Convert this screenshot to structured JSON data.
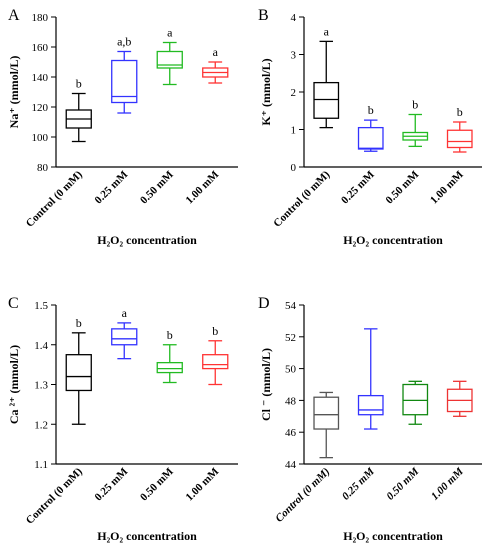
{
  "chart_data": [
    {
      "type": "box",
      "panel_label": "A",
      "ylabel": "Na⁺ (mmol/L)",
      "xlabel": "H₂O₂ concentration",
      "ylim": [
        80,
        180
      ],
      "yticks": [
        80,
        100,
        120,
        140,
        160,
        180
      ],
      "categories": [
        "Control (0 mM)",
        "0.25 mM",
        "0.50 mM",
        "1.00 mM"
      ],
      "colors": [
        "#000000",
        "#3333ff",
        "#22bb22",
        "#ff3333"
      ],
      "boxes": [
        {
          "min": 97,
          "q1": 106,
          "median": 112,
          "q3": 118,
          "max": 129
        },
        {
          "min": 116,
          "q1": 123,
          "median": 127,
          "q3": 151,
          "max": 157
        },
        {
          "min": 135,
          "q1": 146,
          "median": 148,
          "q3": 157,
          "max": 163
        },
        {
          "min": 136,
          "q1": 140,
          "median": 143,
          "q3": 146,
          "max": 150
        }
      ],
      "letters": [
        "b",
        "a,b",
        "a",
        "a"
      ]
    },
    {
      "type": "box",
      "panel_label": "B",
      "ylabel": "K⁺ (mmol/L)",
      "xlabel": "H₂O₂ concentration",
      "ylim": [
        0,
        4
      ],
      "yticks": [
        0,
        1,
        2,
        3,
        4
      ],
      "categories": [
        "Control (0 mM)",
        "0.25 mM",
        "0.50 mM",
        "1.00 mM"
      ],
      "colors": [
        "#000000",
        "#3333ff",
        "#22bb22",
        "#ff3333"
      ],
      "boxes": [
        {
          "min": 1.05,
          "q1": 1.3,
          "median": 1.8,
          "q3": 2.25,
          "max": 3.35
        },
        {
          "min": 0.42,
          "q1": 0.48,
          "median": 0.5,
          "q3": 1.05,
          "max": 1.25
        },
        {
          "min": 0.55,
          "q1": 0.72,
          "median": 0.82,
          "q3": 0.92,
          "max": 1.4
        },
        {
          "min": 0.4,
          "q1": 0.52,
          "median": 0.68,
          "q3": 0.98,
          "max": 1.2
        }
      ],
      "letters": [
        "a",
        "b",
        "b",
        "b"
      ]
    },
    {
      "type": "box",
      "panel_label": "C",
      "ylabel": "Ca ²⁺ (mmol/L)",
      "xlabel": "H₂O₂ concentration",
      "ylim": [
        1.1,
        1.5
      ],
      "yticks": [
        1.1,
        1.2,
        1.3,
        1.4,
        1.5
      ],
      "categories": [
        "Control (0 mM)",
        "0.25 mM",
        "0.50 mM",
        "1.00 mM"
      ],
      "colors": [
        "#000000",
        "#3333ff",
        "#22bb22",
        "#ff3333"
      ],
      "boxes": [
        {
          "min": 1.2,
          "q1": 1.285,
          "median": 1.32,
          "q3": 1.375,
          "max": 1.43
        },
        {
          "min": 1.365,
          "q1": 1.4,
          "median": 1.415,
          "q3": 1.44,
          "max": 1.455
        },
        {
          "min": 1.305,
          "q1": 1.33,
          "median": 1.34,
          "q3": 1.355,
          "max": 1.4
        },
        {
          "min": 1.3,
          "q1": 1.34,
          "median": 1.35,
          "q3": 1.375,
          "max": 1.41
        }
      ],
      "letters": [
        "b",
        "a",
        "b",
        "b"
      ]
    },
    {
      "type": "box",
      "panel_label": "D",
      "ylabel": "Cl ⁻ (mmol/L)",
      "xlabel": "H₂O₂ concentration",
      "ylim": [
        44,
        54
      ],
      "yticks": [
        44,
        46,
        48,
        50,
        52,
        54
      ],
      "categories": [
        "Control (0 mM)",
        "0.25 mM",
        "0.50 mM",
        "1.00 mM"
      ],
      "colors": [
        "#555555",
        "#3333ff",
        "#118811",
        "#ee3333"
      ],
      "boxes": [
        {
          "min": 44.4,
          "q1": 46.2,
          "median": 47.1,
          "q3": 48.2,
          "max": 48.5
        },
        {
          "min": 46.2,
          "q1": 47.1,
          "median": 47.4,
          "q3": 48.3,
          "max": 52.5
        },
        {
          "min": 46.5,
          "q1": 47.1,
          "median": 48.0,
          "q3": 49.0,
          "max": 49.2
        },
        {
          "min": 47.0,
          "q1": 47.3,
          "median": 48.0,
          "q3": 48.7,
          "max": 49.2
        }
      ],
      "letters": [
        "",
        "",
        "",
        ""
      ],
      "italic_labels": true
    }
  ]
}
